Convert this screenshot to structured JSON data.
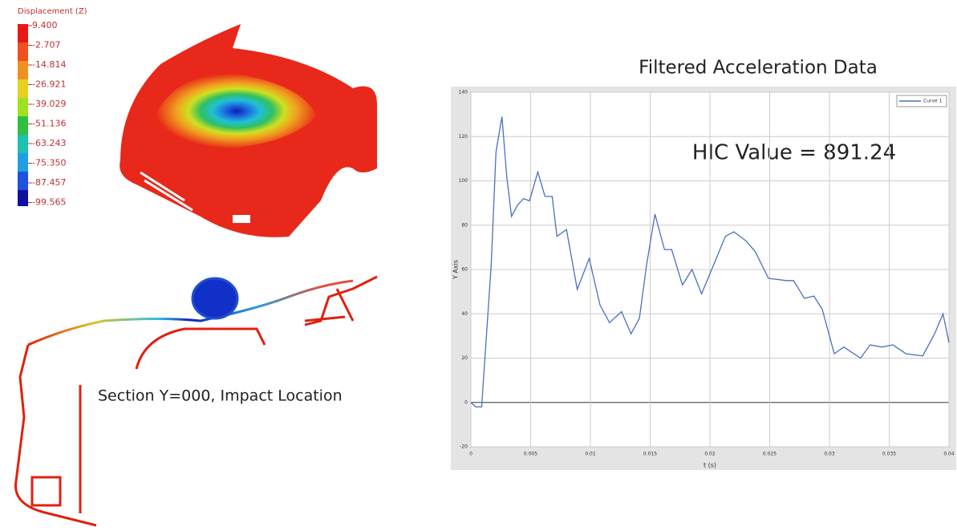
{
  "contour_legend": {
    "title": "Displacement (Z)",
    "labels": [
      "9.400",
      "-2.707",
      "-14.814",
      "-26.921",
      "-39.029",
      "-51.136",
      "-63.243",
      "-75.350",
      "-87.457",
      "-99.565"
    ]
  },
  "caption": "Section Y=000, Impact Location",
  "chart_data": {
    "type": "line",
    "title": "Filtered Acceleration Data",
    "annotation": "HIC Value = 891.24",
    "x_label": "t (s)",
    "y_label": "Y Axis",
    "x": [
      0,
      0.0004,
      0.0009,
      0.0012,
      0.0017,
      0.0021,
      0.0026,
      0.003,
      0.0034,
      0.0039,
      0.0044,
      0.0049,
      0.0056,
      0.0062,
      0.0068,
      0.0072,
      0.008,
      0.0089,
      0.0099,
      0.0108,
      0.0116,
      0.0126,
      0.0134,
      0.0141,
      0.0147,
      0.0154,
      0.0162,
      0.0168,
      0.0177,
      0.0185,
      0.0193,
      0.0203,
      0.0213,
      0.022,
      0.023,
      0.0238,
      0.0249,
      0.0264,
      0.027,
      0.0279,
      0.0287,
      0.0294,
      0.0304,
      0.0312,
      0.0326,
      0.0334,
      0.0344,
      0.0353,
      0.0364,
      0.0378,
      0.0388,
      0.0395,
      0.04
    ],
    "series": [
      {
        "name": "Curve 1",
        "color": "#4a6fc0",
        "values": [
          0,
          -2,
          -2,
          22,
          62,
          113,
          129,
          102,
          84,
          89,
          92,
          91,
          104,
          93,
          93,
          75,
          78,
          51,
          65,
          44,
          36,
          41,
          31,
          38,
          62,
          85,
          69,
          69,
          53,
          60,
          49,
          62,
          75,
          77,
          73,
          68,
          56,
          55,
          55,
          47,
          48,
          42,
          22,
          25,
          20,
          26,
          25,
          26,
          22,
          21,
          31,
          40,
          27
        ]
      }
    ],
    "xlim": [
      0,
      0.04
    ],
    "ylim": [
      -20,
      140
    ],
    "xticks": [
      0,
      0.005,
      0.01,
      0.015,
      0.02,
      0.025,
      0.03,
      0.035,
      0.04
    ],
    "yticks": [
      -20,
      0,
      20,
      40,
      60,
      80,
      100,
      120,
      140
    ],
    "grid": true
  }
}
